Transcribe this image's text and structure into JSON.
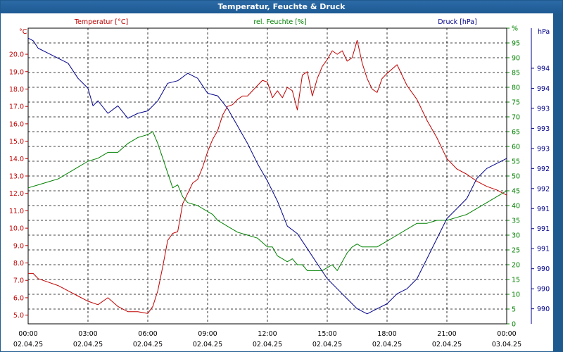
{
  "title": "Temperatur, Feuchte & Druck",
  "colors": {
    "temperature": "#c00000",
    "humidity": "#008000",
    "pressure": "#00008b",
    "grid": "#000000"
  },
  "chart_data": {
    "type": "line",
    "title": "Temperatur, Feuchte & Druck",
    "grid": true,
    "x_ticks": [
      {
        "time": "00:00",
        "date": "02.04.25"
      },
      {
        "time": "03:00",
        "date": "02.04.25"
      },
      {
        "time": "06:00",
        "date": "02.04.25"
      },
      {
        "time": "09:00",
        "date": "02.04.25"
      },
      {
        "time": "12:00",
        "date": "02.04.25"
      },
      {
        "time": "15:00",
        "date": "02.04.25"
      },
      {
        "time": "18:00",
        "date": "02.04.25"
      },
      {
        "time": "21:00",
        "date": "02.04.25"
      },
      {
        "time": "00:00",
        "date": "03.04.25"
      }
    ],
    "axes": {
      "temperature": {
        "label": "Temperatur [°C]",
        "unit": "°C",
        "ylim": [
          4.5,
          21.5
        ],
        "tick_values": [
          5.0,
          6.0,
          7.0,
          8.0,
          9.0,
          10.0,
          11.0,
          12.0,
          13.0,
          14.0,
          15.0,
          16.0,
          17.0,
          18.0,
          19.0,
          20.0
        ],
        "tick_labels": [
          "5.0",
          "6.0",
          "7.0",
          "8.0",
          "9.0",
          "10.0",
          "11.0",
          "12.0",
          "13.0",
          "14.0",
          "15.0",
          "16.0",
          "17.0",
          "18.0",
          "19.0",
          "20.0"
        ]
      },
      "humidity": {
        "label": "rel. Feuchte [%]",
        "unit": "%",
        "ylim": [
          0,
          100
        ],
        "tick_values": [
          0,
          5,
          10,
          15,
          20,
          25,
          30,
          35,
          40,
          45,
          50,
          55,
          60,
          65,
          70,
          75,
          80,
          85,
          90,
          95,
          100
        ],
        "tick_labels": [
          "0",
          "5",
          "10",
          "15",
          "20",
          "25",
          "30",
          "35",
          "40",
          "45",
          "50",
          "55",
          "60",
          "65",
          "70",
          "75",
          "80",
          "85",
          "90",
          "95",
          "%"
        ]
      },
      "pressure": {
        "label": "Druck [hPa]",
        "unit": "hPa",
        "ylim": [
          989.3,
          995.2
        ],
        "tick_values": [
          989.6,
          990.0,
          990.4,
          990.8,
          991.2,
          991.6,
          992.0,
          992.4,
          992.8,
          993.2,
          993.6,
          994.0,
          994.4
        ],
        "tick_labels": [
          "990",
          "990",
          "990",
          "991",
          "991",
          "991",
          "992",
          "992",
          "993",
          "993",
          "993",
          "994",
          "994"
        ]
      }
    },
    "series": [
      {
        "name": "Temperatur [°C]",
        "axis": "temperature",
        "x": [
          0,
          0.25,
          0.5,
          1,
          1.5,
          2,
          2.5,
          3,
          3.5,
          4,
          4.5,
          5,
          5.5,
          6,
          6.25,
          6.5,
          6.75,
          7,
          7.25,
          7.5,
          7.75,
          8,
          8.25,
          8.5,
          8.75,
          9,
          9.25,
          9.5,
          9.75,
          10,
          10.25,
          10.5,
          10.75,
          11,
          11.25,
          11.5,
          11.75,
          12,
          12.25,
          12.5,
          12.75,
          13,
          13.25,
          13.5,
          13.75,
          14,
          14.25,
          14.5,
          14.75,
          15,
          15.25,
          15.5,
          15.75,
          16,
          16.25,
          16.5,
          16.75,
          17,
          17.25,
          17.5,
          17.75,
          18,
          18.5,
          19,
          19.5,
          20,
          20.5,
          21,
          21.5,
          22,
          22.5,
          23,
          23.5,
          24
        ],
        "values": [
          7.4,
          7.4,
          7.1,
          6.9,
          6.7,
          6.4,
          6.1,
          5.8,
          5.6,
          6.0,
          5.5,
          5.2,
          5.2,
          5.1,
          5.5,
          6.4,
          7.8,
          9.3,
          9.7,
          9.8,
          11.4,
          12.0,
          12.6,
          12.8,
          13.5,
          14.4,
          15.1,
          15.6,
          16.5,
          17.0,
          17.1,
          17.4,
          17.6,
          17.6,
          17.9,
          18.2,
          18.5,
          18.4,
          17.5,
          17.9,
          17.5,
          18.1,
          17.9,
          16.8,
          18.8,
          19.0,
          17.6,
          18.6,
          19.3,
          19.7,
          20.2,
          20.0,
          20.2,
          19.6,
          19.8,
          20.8,
          19.5,
          18.6,
          18.0,
          17.8,
          18.6,
          18.9,
          19.4,
          18.2,
          17.4,
          16.2,
          15.2,
          14.0,
          13.4,
          13.1,
          12.7,
          12.4,
          12.2,
          11.9
        ]
      },
      {
        "name": "rel. Feuchte [%]",
        "axis": "humidity",
        "x": [
          0,
          0.5,
          1,
          1.5,
          2,
          2.5,
          3,
          3.5,
          4,
          4.5,
          5,
          5.5,
          6,
          6.25,
          6.5,
          6.75,
          7,
          7.25,
          7.5,
          7.75,
          8,
          8.5,
          9,
          9.25,
          9.5,
          9.75,
          10,
          10.5,
          11,
          11.5,
          12,
          12.25,
          12.5,
          12.75,
          13,
          13.25,
          13.5,
          13.75,
          14,
          14.25,
          14.5,
          14.75,
          15,
          15.25,
          15.5,
          15.75,
          16,
          16.25,
          16.5,
          16.75,
          17,
          17.5,
          18,
          18.5,
          19,
          19.5,
          20,
          20.5,
          21,
          21.5,
          22,
          22.5,
          23,
          23.5,
          24
        ],
        "values": [
          46,
          47,
          48,
          49,
          51,
          53,
          55,
          56,
          58,
          58,
          61,
          63,
          64,
          65,
          61,
          56,
          51,
          46,
          47,
          43,
          41,
          40,
          38,
          37,
          35,
          34,
          33,
          31,
          30,
          29,
          26,
          26,
          23,
          22,
          21,
          22,
          20,
          20,
          18,
          18,
          18,
          18,
          19,
          20,
          18,
          21,
          24,
          26,
          27,
          26,
          26,
          26,
          28,
          30,
          32,
          34,
          34,
          35,
          35,
          36,
          37,
          39,
          41,
          43,
          45
        ]
      },
      {
        "name": "Druck [hPa]",
        "axis": "pressure",
        "x": [
          0,
          0.25,
          0.5,
          1,
          1.5,
          2,
          2.5,
          3,
          3.25,
          3.5,
          4,
          4.5,
          5,
          5.5,
          6,
          6.5,
          7,
          7.5,
          8,
          8.5,
          9,
          9.5,
          10,
          10.5,
          11,
          11.5,
          12,
          12.5,
          13,
          13.5,
          14,
          14.5,
          15,
          15.5,
          16,
          16.5,
          17,
          17.5,
          18,
          18.5,
          19,
          19.5,
          20,
          20.5,
          21,
          21.5,
          22,
          22.5,
          23,
          23.5,
          24
        ],
        "values": [
          995.0,
          994.95,
          994.8,
          994.7,
          994.6,
          994.5,
          994.2,
          994.0,
          993.65,
          993.75,
          993.5,
          993.65,
          993.4,
          993.5,
          993.55,
          993.75,
          994.1,
          994.15,
          994.3,
          994.2,
          993.9,
          993.85,
          993.6,
          993.25,
          992.9,
          992.5,
          992.15,
          991.75,
          991.25,
          991.1,
          990.8,
          990.5,
          990.2,
          990.0,
          989.8,
          989.6,
          989.5,
          989.6,
          989.7,
          989.9,
          990.0,
          990.2,
          990.6,
          991.0,
          991.4,
          991.6,
          991.8,
          992.2,
          992.4,
          992.5,
          992.6
        ]
      }
    ]
  }
}
